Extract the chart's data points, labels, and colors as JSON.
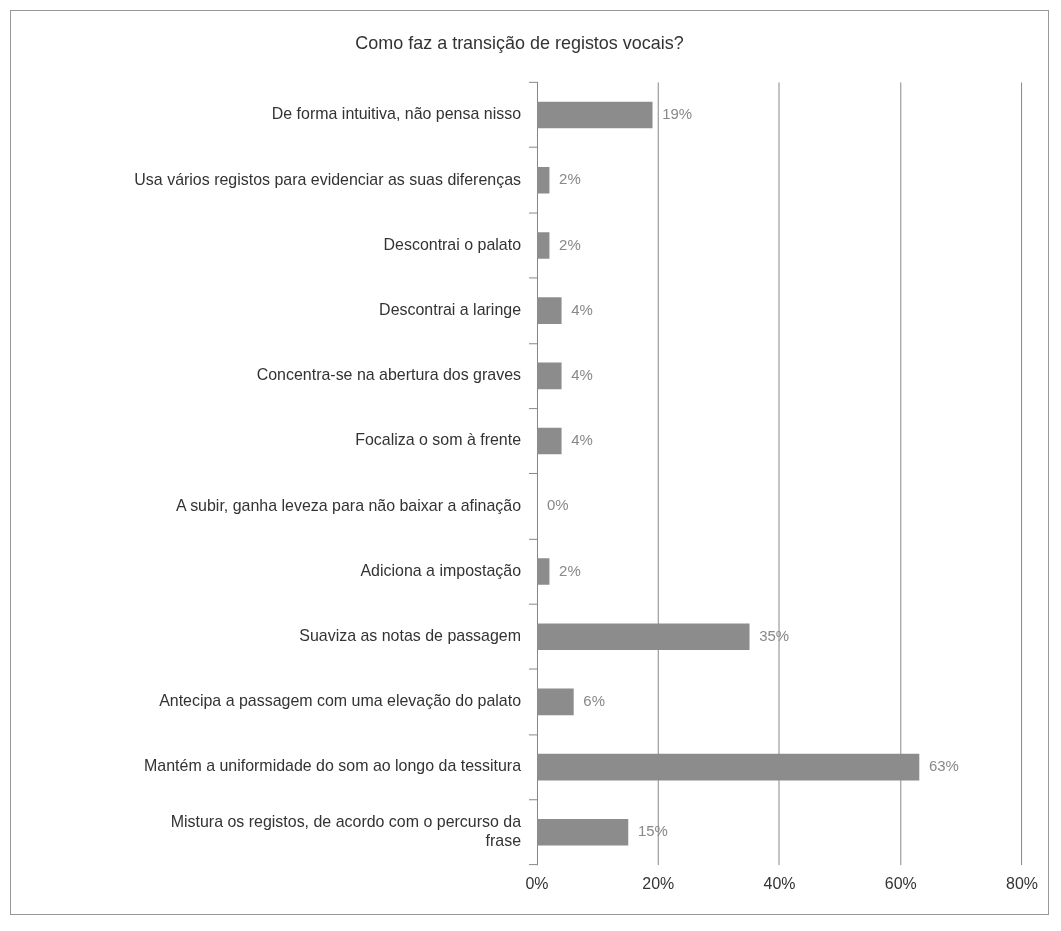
{
  "chart_data": {
    "type": "bar",
    "orientation": "horizontal",
    "title": "Como faz a transição de registos vocais?",
    "categories": [
      "De forma intuitiva, não pensa nisso",
      "Usa vários registos para evidenciar as suas diferenças",
      "Descontrai o palato",
      "Descontrai a laringe",
      "Concentra-se na abertura dos graves",
      "Focaliza o som à frente",
      "A subir, ganha leveza para não baixar a afinação",
      "Adiciona a impostação",
      "Suaviza as notas de passagem",
      "Antecipa a passagem com uma elevação do palato",
      "Mantém a uniformidade do som ao longo da tessitura",
      "Mistura os registos, de acordo com o percurso da frase"
    ],
    "values": [
      19,
      2,
      2,
      4,
      4,
      4,
      0,
      2,
      35,
      6,
      63,
      15
    ],
    "value_labels": [
      "19%",
      "2%",
      "2%",
      "4%",
      "4%",
      "4%",
      "0%",
      "2%",
      "35%",
      "6%",
      "63%",
      "15%"
    ],
    "color": "#8c8c8c",
    "xlim": [
      0,
      80
    ],
    "xticks": [
      {
        "value": 0,
        "label": "0%"
      },
      {
        "value": 20,
        "label": "20%"
      },
      {
        "value": 40,
        "label": "40%"
      },
      {
        "value": 60,
        "label": "60%"
      },
      {
        "value": 80,
        "label": "80%"
      }
    ],
    "grid": "x",
    "legend": false
  }
}
